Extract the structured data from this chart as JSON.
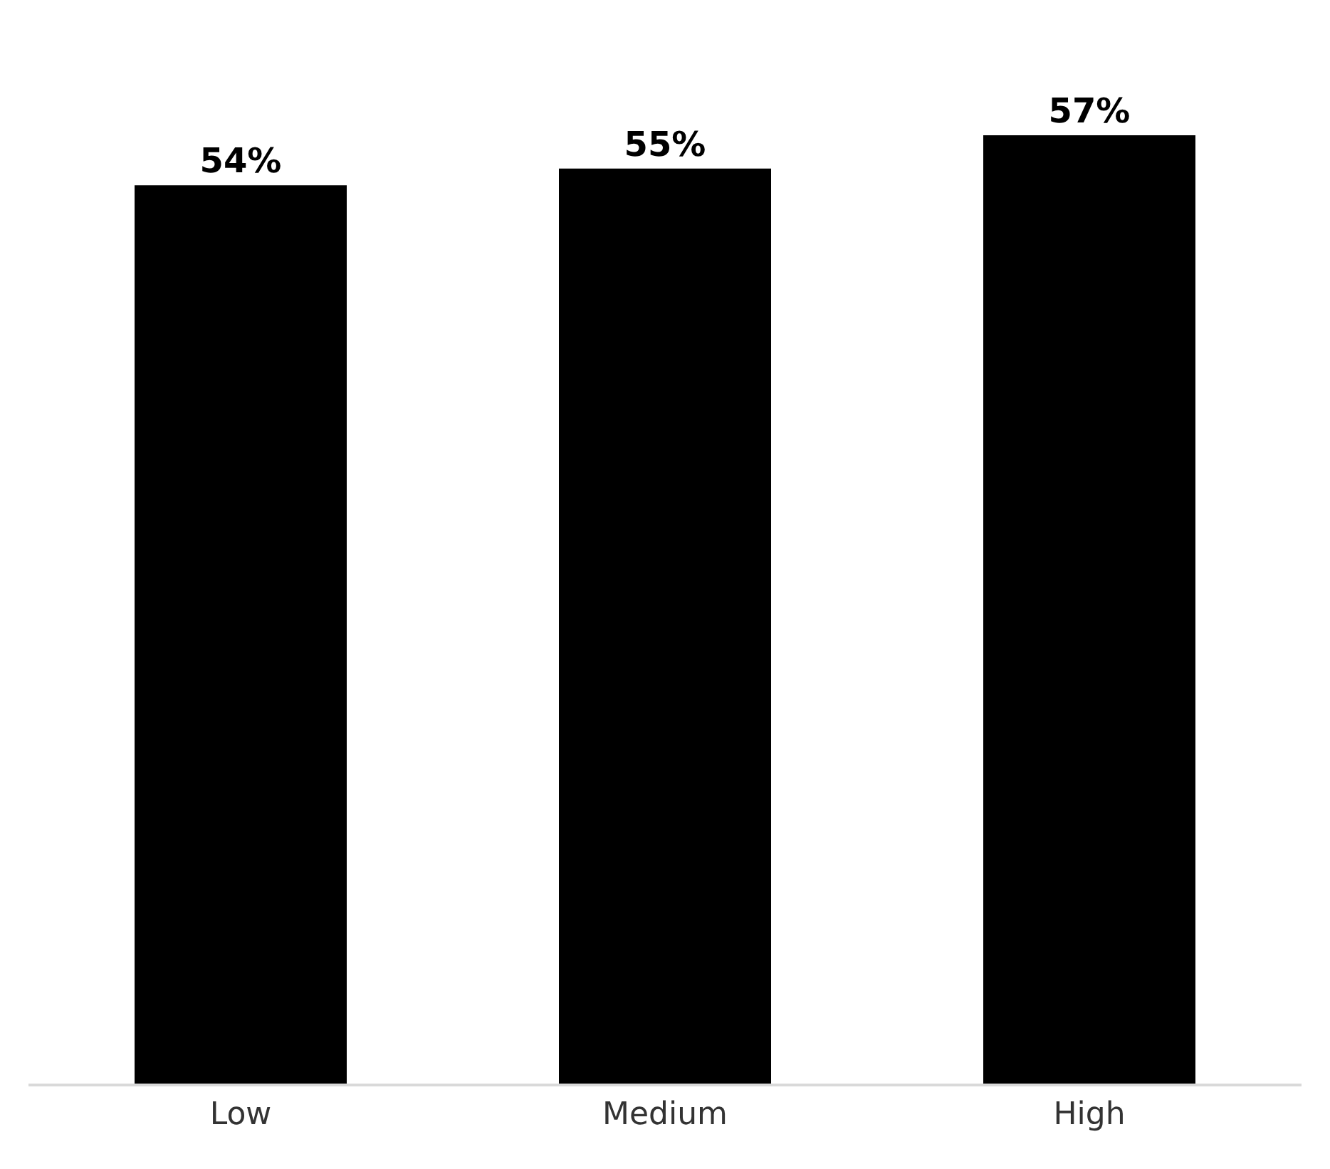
{
  "chart_data": {
    "type": "bar",
    "categories": [
      "Low",
      "Medium",
      "High"
    ],
    "values": [
      54,
      55,
      57
    ],
    "value_labels": [
      "54%",
      "55%",
      "57%"
    ],
    "color": "#000000"
  }
}
